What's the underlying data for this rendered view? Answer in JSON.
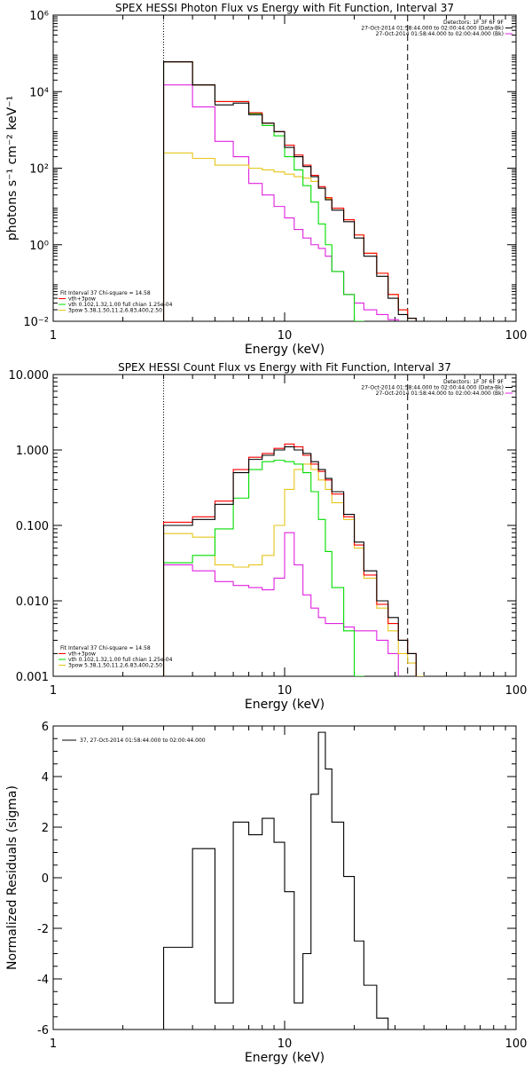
{
  "chart_data": [
    {
      "type": "line",
      "title": "SPEX HESSI Photon Flux vs Energy with Fit Function, Interval 37",
      "xlabel": "Energy (keV)",
      "ylabel": "photons s⁻¹ cm⁻² keV⁻¹",
      "xscale": "log",
      "yscale": "log",
      "xlim": [
        1,
        100
      ],
      "ylim": [
        0.01,
        1000000
      ],
      "xticks": [
        1,
        10,
        100
      ],
      "xtick_labels": [
        "1",
        "10",
        "100"
      ],
      "yticks": [
        0.01,
        1,
        100,
        10000,
        1000000
      ],
      "ytick_labels": [
        "10⁻²",
        "10⁰",
        "10²",
        "10⁴",
        "10⁶"
      ],
      "vlines": [
        {
          "x": 3,
          "style": "dotted"
        },
        {
          "x": 34,
          "style": "dashed"
        }
      ],
      "legend_right": [
        {
          "text": "Detectors: 1F 3F 6F 9F",
          "color": null
        },
        {
          "text": "27-Oct-2014 01:58:44.000 to 02:00:44.000 (Data-Bk)",
          "color": "#000000"
        },
        {
          "text": "27-Oct-2014 01:58:44.000 to 02:00:44.000 (Bk)",
          "color": "#e022e0"
        }
      ],
      "legend_left": [
        {
          "text": "Fit Interval 37    Chi-square = 14.58",
          "color": null
        },
        {
          "text": "vth+3pow",
          "color": "#ff0000"
        },
        {
          "text": "vth 0.102,1.32,1.00   full chian 1.25e-04",
          "color": "#00dd00"
        },
        {
          "text": "3pow 5.38,1.50,11.2,6.83,400,2.50",
          "color": "#e6c619"
        }
      ],
      "edges": [
        3,
        4,
        5,
        6,
        7,
        8,
        9,
        10,
        11,
        12,
        13,
        14,
        15,
        16,
        18,
        20,
        22,
        25,
        28,
        31,
        34,
        37,
        40
      ],
      "series": [
        {
          "name": "Data-Bk",
          "color": "#000000",
          "values": [
            60000,
            15000,
            4500,
            5000,
            2500,
            1500,
            900,
            350,
            200,
            110,
            60,
            30,
            15,
            8,
            4,
            1.5,
            0.5,
            0.15,
            0.04,
            0.015,
            0.012,
            0.01
          ]
        },
        {
          "name": "vth+3pow",
          "color": "#ff0000",
          "values": [
            60000,
            15000,
            5500,
            5500,
            2800,
            1500,
            900,
            400,
            220,
            120,
            65,
            33,
            17,
            9,
            4.5,
            1.8,
            0.6,
            0.18,
            0.05,
            0.02,
            0.012,
            0.01
          ]
        },
        {
          "name": "vth",
          "color": "#00dd00",
          "values": [
            60000,
            15000,
            5500,
            5500,
            2700,
            1300,
            700,
            200,
            90,
            35,
            13,
            3.5,
            1,
            0.2,
            0.05,
            0.01
          ]
        },
        {
          "name": "3pow",
          "color": "#e6c619",
          "values": [
            250,
            180,
            120,
            120,
            100,
            90,
            80,
            70,
            60,
            55,
            45,
            30,
            16,
            9,
            4.5,
            1.8,
            0.6,
            0.18,
            0.05,
            0.02,
            0.012,
            0.01
          ]
        },
        {
          "name": "Bk",
          "color": "#e022e0",
          "values": [
            15000,
            4000,
            500,
            200,
            40,
            20,
            10,
            5,
            2.5,
            1.5,
            1,
            0.8,
            0.5,
            0.2,
            0.05,
            0.03,
            0.02,
            0.015,
            0.011
          ]
        }
      ]
    },
    {
      "type": "line",
      "title": "SPEX HESSI Count Flux vs Energy with Fit Function, Interval 37",
      "xlabel": "Energy (keV)",
      "ylabel": "",
      "xscale": "log",
      "yscale": "log",
      "xlim": [
        1,
        100
      ],
      "ylim": [
        0.001,
        10
      ],
      "xticks": [
        1,
        10,
        100
      ],
      "xtick_labels": [
        "1",
        "10",
        "100"
      ],
      "yticks": [
        0.001,
        0.01,
        0.1,
        1,
        10
      ],
      "ytick_labels": [
        "0.001",
        "0.010",
        "0.100",
        "1.000",
        "10.000"
      ],
      "vlines": [
        {
          "x": 3,
          "style": "dotted"
        },
        {
          "x": 34,
          "style": "dashed"
        }
      ],
      "legend_right": [
        {
          "text": "Detectors: 1F 3F 6F 9F",
          "color": null
        },
        {
          "text": "27-Oct-2014 01:58:44.000 to 02:00:44.000 (Data-Bk)",
          "color": "#000000"
        },
        {
          "text": "27-Oct-2014 01:58:44.000 to 02:00:44.000 (Bk)",
          "color": "#e022e0"
        }
      ],
      "legend_left": [
        {
          "text": "Fit Interval 37    Chi-square = 14.58",
          "color": null
        },
        {
          "text": "vth+3pow",
          "color": "#ff0000"
        },
        {
          "text": "vth 0.102,1.32,1.00   full chian 1.25e-04",
          "color": "#00dd00"
        },
        {
          "text": "3pow 5.38,1.50,11.2,6.83,400,2.50",
          "color": "#e6c619"
        }
      ],
      "edges": [
        3,
        4,
        5,
        6,
        7,
        8,
        9,
        10,
        11,
        12,
        13,
        14,
        15,
        16,
        18,
        20,
        22,
        25,
        28,
        31,
        34,
        37,
        40
      ],
      "series": [
        {
          "name": "Data-Bk",
          "color": "#000000",
          "values": [
            0.1,
            0.12,
            0.19,
            0.5,
            0.75,
            0.85,
            1.0,
            1.1,
            1.0,
            0.9,
            0.7,
            0.55,
            0.42,
            0.28,
            0.14,
            0.06,
            0.025,
            0.01,
            0.006,
            0.003,
            0.002
          ]
        },
        {
          "name": "vth+3pow",
          "color": "#ff0000",
          "values": [
            0.11,
            0.13,
            0.21,
            0.55,
            0.8,
            0.9,
            1.05,
            1.2,
            1.1,
            0.85,
            0.65,
            0.52,
            0.4,
            0.26,
            0.13,
            0.055,
            0.022,
            0.009,
            0.005,
            0.003,
            0.002
          ]
        },
        {
          "name": "vth",
          "color": "#00dd00",
          "values": [
            0.032,
            0.04,
            0.09,
            0.23,
            0.55,
            0.7,
            0.73,
            0.7,
            0.65,
            0.5,
            0.28,
            0.12,
            0.045,
            0.015,
            0.004,
            0.001
          ]
        },
        {
          "name": "3pow",
          "color": "#e6c619",
          "values": [
            0.078,
            0.07,
            0.03,
            0.028,
            0.03,
            0.04,
            0.1,
            0.3,
            0.55,
            0.65,
            0.55,
            0.4,
            0.3,
            0.2,
            0.12,
            0.05,
            0.02,
            0.008,
            0.004,
            0.002,
            0.0015,
            0.001
          ]
        },
        {
          "name": "Bk",
          "color": "#e022e0",
          "values": [
            0.03,
            0.025,
            0.018,
            0.016,
            0.015,
            0.014,
            0.02,
            0.08,
            0.03,
            0.012,
            0.008,
            0.006,
            0.005,
            0.005,
            0.0045,
            0.004,
            0.004,
            0.003,
            0.002
          ]
        }
      ]
    },
    {
      "type": "line",
      "title": "",
      "xlabel": "Energy (keV)",
      "ylabel": "Normalized Residuals (sigma)",
      "xscale": "log",
      "yscale": "linear",
      "xlim": [
        1,
        100
      ],
      "ylim": [
        -6,
        6
      ],
      "xticks": [
        1,
        10,
        100
      ],
      "xtick_labels": [
        "1",
        "10",
        "100"
      ],
      "yticks": [
        -6,
        -4,
        -2,
        0,
        2,
        4,
        6
      ],
      "ytick_labels": [
        "-6",
        "-4",
        "-2",
        "0",
        "2",
        "4",
        "6"
      ],
      "legend": [
        {
          "text": "37, 27-Oct-2014 01:58:44.000 to 02:00:44.000",
          "color": "#000000"
        }
      ],
      "edges": [
        3,
        4,
        5,
        6,
        7,
        8,
        9,
        10,
        11,
        12,
        13,
        14,
        15,
        16,
        18,
        20,
        22,
        25,
        28,
        31,
        34
      ],
      "series": [
        {
          "name": "37, 27-Oct-2014 01:58:44.000 to 02:00:44.000",
          "color": "#000000",
          "values": [
            -2.75,
            1.15,
            -4.95,
            2.2,
            1.7,
            2.35,
            1.4,
            -0.55,
            -4.95,
            -3.0,
            3.3,
            5.75,
            4.3,
            2.2,
            0.05,
            -2.5,
            -4.25,
            -5.55,
            -6.0,
            -6.0
          ]
        }
      ]
    }
  ]
}
